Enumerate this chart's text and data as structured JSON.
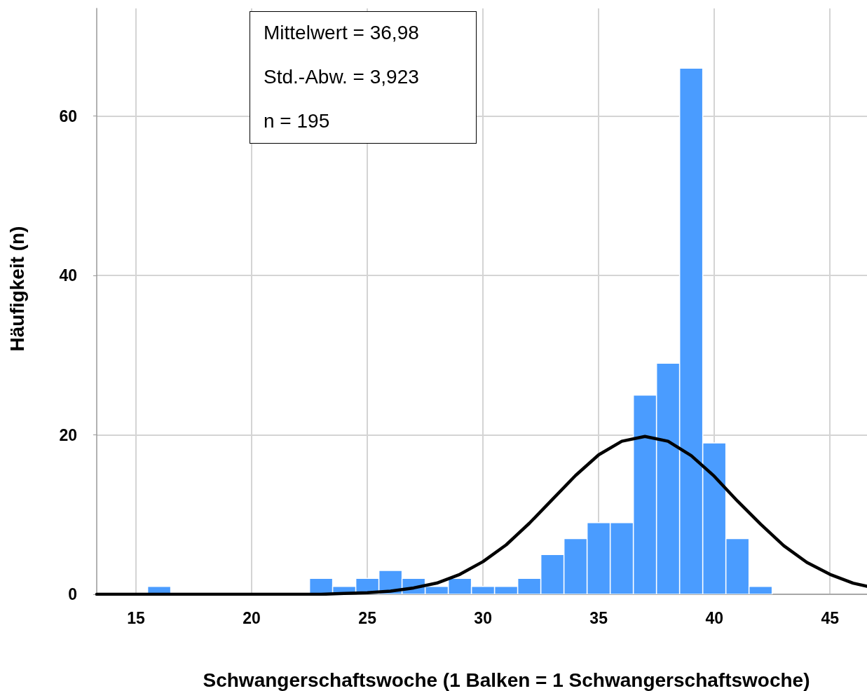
{
  "chart_data": {
    "type": "histogram",
    "xlabel": "Schwangerschaftswoche (1 Balken = 1 Schwangerschaftswoche)",
    "ylabel": "Häufigkeit (n)",
    "annotations": [
      "Mittelwert = 36,98",
      "Std.-Abw. = 3,923",
      "n = 195"
    ],
    "xlim": [
      13.3,
      46.6
    ],
    "xticks": [
      15,
      20,
      25,
      30,
      35,
      40,
      45
    ],
    "ylim": [
      0,
      73.5
    ],
    "yticks": [
      0,
      20,
      40,
      60
    ],
    "grid": true,
    "series": [
      {
        "color": "#4a9cff",
        "bins": [
          15.5,
          16.5,
          17.5,
          18.5,
          19.5,
          20.5,
          21.5,
          22.5,
          23.5,
          24.5,
          25.5,
          26.5,
          27.5,
          28.5,
          29.5,
          30.5,
          31.5,
          32.5,
          33.5,
          34.5,
          35.5,
          36.5,
          37.5,
          38.5,
          39.5,
          40.5,
          41.5,
          42.5
        ],
        "values": [
          1,
          0,
          0,
          0,
          0,
          0,
          0,
          2,
          1,
          2,
          3,
          2,
          1,
          2,
          1,
          1,
          2,
          5,
          7,
          9,
          9,
          25,
          29,
          66,
          19,
          7,
          1
        ]
      },
      {
        "type": "line",
        "color": "#000000",
        "marker": "none",
        "x": [
          13.3,
          20,
          22,
          23,
          24,
          25,
          26,
          27,
          28,
          29,
          30,
          31,
          32,
          33,
          34,
          35,
          36,
          37,
          38,
          39,
          40,
          41,
          42,
          43,
          44,
          45,
          46,
          46.6
        ],
        "values": [
          0,
          0,
          0,
          0,
          0.1,
          0.2,
          0.4,
          0.8,
          1.4,
          2.5,
          4.1,
          6.2,
          8.9,
          11.9,
          14.9,
          17.5,
          19.2,
          19.8,
          19.2,
          17.4,
          14.8,
          11.7,
          8.8,
          6.1,
          4.0,
          2.5,
          1.4,
          1.0
        ]
      }
    ]
  }
}
